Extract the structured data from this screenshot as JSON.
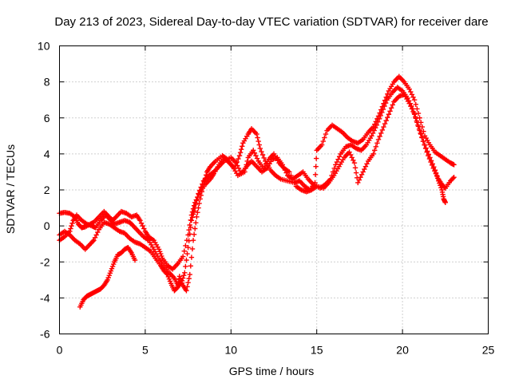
{
  "chart_data": {
    "type": "scatter",
    "title": "Day 213 of 2023, Sidereal Day-to-day VTEC variation (SDTVAR) for receiver dare",
    "xlabel": "GPS time / hours",
    "ylabel": "SDTVAR / TECUs",
    "xlim": [
      0,
      25
    ],
    "ylim": [
      -6,
      10
    ],
    "xticks": [
      "0",
      "5",
      "10",
      "15",
      "20",
      "25"
    ],
    "yticks": [
      "-6",
      "-4",
      "-2",
      "0",
      "2",
      "4",
      "6",
      "8",
      "10"
    ],
    "grid": true,
    "marker": "plus",
    "color": "#ff0000",
    "series": [
      {
        "points": [
          [
            0,
            0.7
          ],
          [
            0.3,
            0.75
          ],
          [
            0.6,
            0.7
          ],
          [
            0.9,
            0.5
          ],
          [
            1.1,
            0.1
          ],
          [
            1.3,
            -0.1
          ],
          [
            1.5,
            -0.05
          ],
          [
            1.8,
            0.1
          ],
          [
            2.0,
            0.2
          ],
          [
            2.3,
            0.5
          ],
          [
            2.6,
            0.8
          ],
          [
            2.9,
            0.5
          ],
          [
            3.1,
            0.3
          ],
          [
            3.3,
            0.5
          ],
          [
            3.6,
            0.8
          ],
          [
            3.9,
            0.7
          ],
          [
            4.2,
            0.5
          ],
          [
            4.5,
            0.6
          ],
          [
            4.7,
            0.3
          ],
          [
            5.0,
            -0.3
          ],
          [
            5.2,
            -0.6
          ],
          [
            5.5,
            -0.8
          ],
          [
            5.8,
            -1.3
          ],
          [
            6.0,
            -1.8
          ],
          [
            6.3,
            -2.2
          ],
          [
            6.6,
            -2.4
          ],
          [
            6.9,
            -2.1
          ],
          [
            7.2,
            -1.7
          ],
          [
            7.5,
            -0.5
          ],
          [
            7.7,
            0.6
          ],
          [
            7.9,
            1.3
          ],
          [
            8.2,
            1.9
          ],
          [
            8.5,
            2.3
          ],
          [
            8.8,
            2.6
          ],
          [
            9.0,
            2.9
          ],
          [
            9.3,
            3.4
          ],
          [
            9.6,
            3.8
          ],
          [
            9.9,
            3.5
          ],
          [
            10.2,
            3.2
          ],
          [
            10.5,
            3.9
          ],
          [
            10.7,
            4.6
          ],
          [
            11.0,
            5.1
          ],
          [
            11.2,
            5.4
          ],
          [
            11.5,
            5.1
          ],
          [
            11.7,
            4.3
          ],
          [
            12.0,
            3.6
          ],
          [
            12.3,
            3.1
          ],
          [
            12.6,
            2.8
          ],
          [
            12.9,
            2.6
          ],
          [
            13.3,
            2.5
          ],
          [
            13.7,
            2.4
          ],
          [
            14.0,
            2.5
          ],
          [
            14.3,
            2.2
          ],
          [
            14.6,
            2.0
          ],
          [
            14.9,
            2.4
          ],
          [
            15.0,
            4.2
          ],
          [
            15.3,
            4.5
          ],
          [
            15.6,
            5.3
          ],
          [
            15.9,
            5.6
          ],
          [
            16.2,
            5.4
          ],
          [
            16.5,
            5.2
          ],
          [
            16.8,
            4.9
          ],
          [
            17.1,
            4.7
          ],
          [
            17.4,
            4.6
          ],
          [
            17.7,
            4.8
          ],
          [
            18.0,
            5.2
          ],
          [
            18.3,
            5.5
          ],
          [
            18.6,
            6.1
          ],
          [
            18.9,
            6.8
          ],
          [
            19.2,
            7.5
          ],
          [
            19.5,
            8.0
          ],
          [
            19.8,
            8.3
          ],
          [
            20.1,
            8.0
          ],
          [
            20.4,
            7.6
          ],
          [
            20.7,
            7.0
          ],
          [
            21.0,
            6.0
          ],
          [
            21.3,
            5.0
          ],
          [
            21.6,
            4.5
          ],
          [
            21.9,
            4.1
          ],
          [
            22.2,
            3.9
          ],
          [
            22.5,
            3.7
          ],
          [
            22.8,
            3.5
          ],
          [
            23.0,
            3.4
          ]
        ]
      },
      {
        "points": [
          [
            0,
            -0.8
          ],
          [
            0.3,
            -0.6
          ],
          [
            0.6,
            -0.3
          ],
          [
            0.8,
            0.3
          ],
          [
            1.0,
            0.6
          ],
          [
            1.3,
            0.3
          ],
          [
            1.6,
            0.1
          ],
          [
            1.9,
            0.0
          ],
          [
            2.1,
            -0.1
          ],
          [
            2.4,
            0.3
          ],
          [
            2.7,
            0.6
          ],
          [
            3.0,
            0.3
          ],
          [
            3.2,
            0.1
          ],
          [
            3.5,
            0.2
          ],
          [
            3.8,
            0.3
          ],
          [
            4.1,
            0.2
          ],
          [
            4.3,
            0.0
          ],
          [
            4.6,
            -0.3
          ],
          [
            4.9,
            -0.6
          ],
          [
            5.2,
            -0.8
          ],
          [
            5.5,
            -1.3
          ],
          [
            5.8,
            -1.8
          ],
          [
            6.1,
            -2.2
          ],
          [
            6.4,
            -2.6
          ],
          [
            6.7,
            -2.9
          ],
          [
            6.9,
            -3.3
          ],
          [
            7.1,
            -3.2
          ],
          [
            7.3,
            -2.6
          ],
          [
            7.5,
            -1.2
          ],
          [
            7.7,
            0.3
          ],
          [
            7.9,
            1.0
          ],
          [
            8.1,
            1.8
          ],
          [
            8.4,
            2.5
          ],
          [
            8.7,
            2.8
          ],
          [
            9.0,
            3.0
          ],
          [
            9.3,
            3.3
          ],
          [
            9.6,
            3.6
          ],
          [
            10.0,
            3.8
          ],
          [
            10.3,
            3.5
          ],
          [
            10.6,
            2.9
          ],
          [
            10.9,
            3.3
          ],
          [
            11.2,
            3.6
          ],
          [
            11.5,
            3.3
          ],
          [
            11.8,
            3.0
          ],
          [
            12.1,
            3.2
          ],
          [
            12.4,
            3.7
          ],
          [
            12.7,
            3.8
          ],
          [
            13.0,
            3.4
          ],
          [
            13.3,
            2.8
          ],
          [
            13.6,
            2.6
          ],
          [
            13.9,
            2.8
          ],
          [
            14.2,
            3.0
          ],
          [
            14.5,
            2.6
          ],
          [
            14.8,
            2.3
          ],
          [
            15.2,
            2.1
          ],
          [
            15.5,
            2.3
          ],
          [
            15.8,
            2.6
          ],
          [
            16.1,
            3.4
          ],
          [
            16.4,
            4.0
          ],
          [
            16.7,
            4.4
          ],
          [
            17.0,
            4.5
          ],
          [
            17.3,
            4.3
          ],
          [
            17.6,
            4.2
          ],
          [
            17.9,
            4.5
          ],
          [
            18.2,
            5.0
          ],
          [
            18.5,
            5.6
          ],
          [
            18.8,
            6.3
          ],
          [
            19.1,
            7.0
          ],
          [
            19.4,
            7.4
          ],
          [
            19.7,
            7.7
          ],
          [
            20.0,
            7.5
          ],
          [
            20.3,
            7.1
          ],
          [
            20.6,
            6.5
          ],
          [
            20.9,
            5.6
          ],
          [
            21.2,
            4.7
          ],
          [
            21.5,
            3.9
          ],
          [
            21.8,
            3.2
          ],
          [
            22.1,
            2.6
          ],
          [
            22.3,
            2.3
          ],
          [
            22.5,
            2.1
          ],
          [
            22.8,
            2.5
          ],
          [
            23.0,
            2.7
          ]
        ]
      },
      {
        "points": [
          [
            0,
            -0.5
          ],
          [
            0.3,
            -0.3
          ],
          [
            0.6,
            -0.5
          ],
          [
            0.9,
            -0.8
          ],
          [
            1.2,
            -1.0
          ],
          [
            1.5,
            -1.3
          ],
          [
            1.8,
            -1.0
          ],
          [
            2.0,
            -0.8
          ],
          [
            2.3,
            -0.2
          ],
          [
            2.6,
            0.2
          ],
          [
            2.9,
            0.1
          ],
          [
            3.2,
            -0.1
          ],
          [
            3.5,
            -0.3
          ],
          [
            3.8,
            -0.4
          ],
          [
            4.1,
            -0.7
          ],
          [
            4.4,
            -0.9
          ],
          [
            4.7,
            -1.0
          ],
          [
            5.0,
            -1.2
          ],
          [
            5.3,
            -1.4
          ],
          [
            5.6,
            -1.8
          ],
          [
            5.9,
            -2.2
          ],
          [
            6.1,
            -2.5
          ],
          [
            6.3,
            -2.7
          ],
          [
            6.5,
            -3.2
          ],
          [
            6.7,
            -3.6
          ],
          [
            6.9,
            -3.4
          ],
          [
            7.0,
            -2.8
          ],
          [
            7.2,
            -3.3
          ],
          [
            7.4,
            -3.6
          ],
          [
            7.6,
            -2.7
          ],
          [
            7.8,
            -0.8
          ],
          [
            8.0,
            0.5
          ],
          [
            8.2,
            1.5
          ],
          [
            8.4,
            2.3
          ],
          [
            8.6,
            3.0
          ],
          [
            8.8,
            3.3
          ],
          [
            9.1,
            3.6
          ],
          [
            9.5,
            3.9
          ],
          [
            9.8,
            3.7
          ],
          [
            10.1,
            3.3
          ],
          [
            10.4,
            2.8
          ],
          [
            10.8,
            3.0
          ],
          [
            11.0,
            3.8
          ],
          [
            11.3,
            4.2
          ],
          [
            11.6,
            3.6
          ],
          [
            11.9,
            3.2
          ],
          [
            12.2,
            3.7
          ],
          [
            12.5,
            4.0
          ],
          [
            12.8,
            3.5
          ],
          [
            13.1,
            3.2
          ],
          [
            13.4,
            3.0
          ],
          [
            13.8,
            2.2
          ],
          [
            14.1,
            2.0
          ],
          [
            14.4,
            1.9
          ],
          [
            14.7,
            2.0
          ],
          [
            15.0,
            2.2
          ],
          [
            15.4,
            2.1
          ],
          [
            15.7,
            2.4
          ],
          [
            16.0,
            2.8
          ],
          [
            16.3,
            3.3
          ],
          [
            16.6,
            3.8
          ],
          [
            16.9,
            4.1
          ],
          [
            17.2,
            3.5
          ],
          [
            17.4,
            2.4
          ],
          [
            17.7,
            3.0
          ],
          [
            18.0,
            3.6
          ],
          [
            18.3,
            4.0
          ],
          [
            18.6,
            4.8
          ],
          [
            18.9,
            5.5
          ],
          [
            19.2,
            6.2
          ],
          [
            19.5,
            6.9
          ],
          [
            19.8,
            7.2
          ],
          [
            20.1,
            7.3
          ],
          [
            20.4,
            6.8
          ],
          [
            20.7,
            6.2
          ],
          [
            21.0,
            5.3
          ],
          [
            21.3,
            4.5
          ],
          [
            21.6,
            3.8
          ],
          [
            21.9,
            3.1
          ],
          [
            22.1,
            2.5
          ],
          [
            22.3,
            2.0
          ],
          [
            22.4,
            1.5
          ],
          [
            22.5,
            1.3
          ]
        ]
      },
      {
        "points": [
          [
            1.2,
            -4.5
          ],
          [
            1.4,
            -4.1
          ],
          [
            1.6,
            -3.9
          ],
          [
            1.8,
            -3.8
          ],
          [
            2.0,
            -3.7
          ],
          [
            2.2,
            -3.6
          ],
          [
            2.4,
            -3.5
          ],
          [
            2.6,
            -3.3
          ],
          [
            2.8,
            -3.0
          ],
          [
            3.0,
            -2.5
          ],
          [
            3.2,
            -2.0
          ],
          [
            3.4,
            -1.6
          ],
          [
            3.6,
            -1.5
          ],
          [
            3.8,
            -1.3
          ],
          [
            4.0,
            -1.2
          ],
          [
            4.2,
            -1.5
          ],
          [
            4.4,
            -1.9
          ]
        ]
      }
    ]
  }
}
